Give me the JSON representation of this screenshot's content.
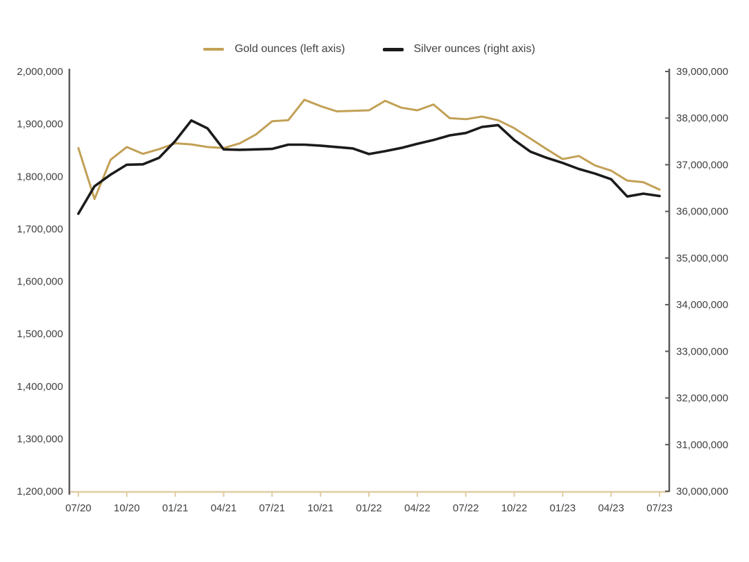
{
  "legend": {
    "items": [
      {
        "label": "Gold ounces (left axis)",
        "color": "#C2A056"
      },
      {
        "label": "Silver ounces (right axis)",
        "color": "#1B1B1B"
      }
    ]
  },
  "colors": {
    "gold_series": "#C2A056",
    "silver_series": "#1B1B1B",
    "vertical_axis_line": "#595959",
    "x_axis_line": "#DFCDA0",
    "axis_label_text": "#404040",
    "background": "#FFFFFF"
  },
  "chart_data": {
    "type": "line",
    "title": "",
    "xlabel": "",
    "ylabel_left": "",
    "ylabel_right": "",
    "grid": false,
    "legend_position": "top",
    "x": [
      "07/20",
      "08/20",
      "09/20",
      "10/20",
      "11/20",
      "12/20",
      "01/21",
      "02/21",
      "03/21",
      "04/21",
      "05/21",
      "06/21",
      "07/21",
      "08/21",
      "09/21",
      "10/21",
      "11/21",
      "12/21",
      "01/22",
      "02/22",
      "03/22",
      "04/22",
      "05/22",
      "06/22",
      "07/22",
      "08/22",
      "09/22",
      "10/22",
      "11/22",
      "12/22",
      "01/23",
      "02/23",
      "03/23",
      "04/23",
      "05/23",
      "06/23",
      "07/23"
    ],
    "x_tick_labels": [
      "07/20",
      "10/20",
      "01/21",
      "04/21",
      "07/21",
      "10/21",
      "01/22",
      "04/22",
      "07/22",
      "10/22",
      "01/23",
      "04/23",
      "07/23"
    ],
    "series": [
      {
        "name": "Gold ounces (left axis)",
        "axis": "left",
        "color": "#C2A056",
        "values": [
          1854000,
          1757000,
          1832000,
          1856000,
          1843000,
          1852000,
          1863000,
          1861000,
          1856000,
          1854000,
          1863000,
          1880000,
          1905000,
          1907000,
          1946000,
          1934000,
          1924000,
          1925000,
          1926000,
          1944000,
          1931000,
          1926000,
          1937000,
          1911000,
          1909000,
          1914000,
          1907000,
          1892000,
          1872000,
          1852000,
          1833000,
          1839000,
          1821000,
          1811000,
          1792000,
          1789000,
          1775000
        ]
      },
      {
        "name": "Silver ounces (right axis)",
        "axis": "right",
        "color": "#1B1B1B",
        "values": [
          35950000,
          36540000,
          36790000,
          37000000,
          37010000,
          37150000,
          37510000,
          37950000,
          37780000,
          37330000,
          37320000,
          37330000,
          37340000,
          37430000,
          37430000,
          37410000,
          37380000,
          37350000,
          37230000,
          37290000,
          37360000,
          37450000,
          37530000,
          37630000,
          37680000,
          37810000,
          37850000,
          37530000,
          37280000,
          37150000,
          37040000,
          36910000,
          36810000,
          36690000,
          36320000,
          36380000,
          36330000
        ]
      }
    ],
    "left_axis": {
      "min": 1200000,
      "max": 2000000,
      "step": 100000,
      "tick_labels": [
        "2,000,000",
        "1,900,000",
        "1,800,000",
        "1,700,000",
        "1,600,000",
        "1,500,000",
        "1,400,000",
        "1,300,000",
        "1,200,000"
      ]
    },
    "right_axis": {
      "min": 30000000,
      "max": 39000000,
      "step": 1000000,
      "tick_labels": [
        "39,000,000",
        "38,000,000",
        "37,000,000",
        "36,000,000",
        "35,000,000",
        "34,000,000",
        "33,000,000",
        "32,000,000",
        "31,000,000",
        "30,000,000"
      ]
    }
  }
}
